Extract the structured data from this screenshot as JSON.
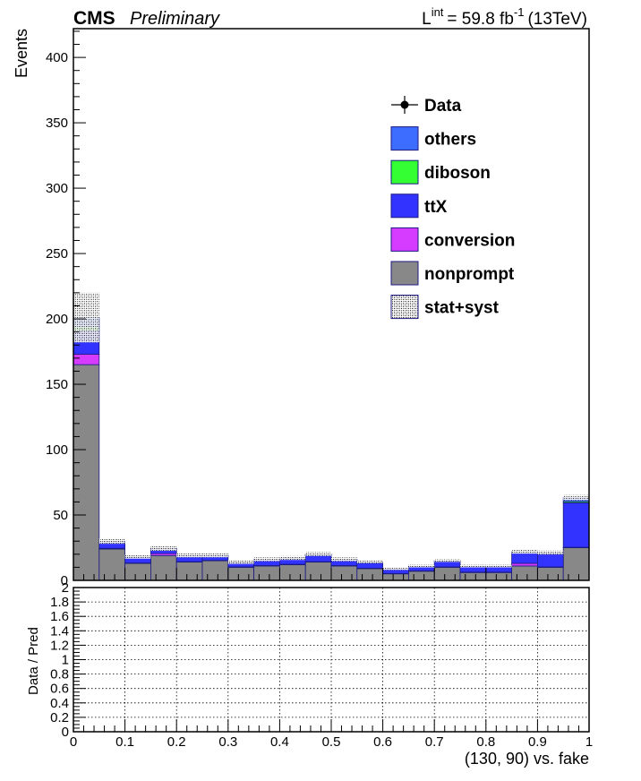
{
  "header": {
    "experiment": "CMS",
    "status": "Preliminary",
    "lumi_prefix": "L",
    "lumi_superscript": "int",
    "lumi_value": "= 59.8 fb",
    "lumi_unit_exp": "-1",
    "lumi_energy": "(13TeV)"
  },
  "colors": {
    "others": "#3d6dff",
    "diboson": "#33ff33",
    "ttX": "#3333ff",
    "conversion": "#d63cff",
    "nonprompt": "#888888",
    "frame": "#000000",
    "outline": "#1a1a80",
    "grid": "#000000"
  },
  "chart_data": [
    {
      "type": "bar",
      "stacked": true,
      "title": "",
      "xlabel": "",
      "ylabel": "Events",
      "xlim": [
        0,
        1
      ],
      "ylim": [
        0,
        422
      ],
      "y_ticks": [
        0,
        50,
        100,
        150,
        200,
        250,
        300,
        350,
        400
      ],
      "bin_edges": [
        0,
        0.05,
        0.1,
        0.15,
        0.2,
        0.25,
        0.3,
        0.35,
        0.4,
        0.45,
        0.5,
        0.55,
        0.6,
        0.65,
        0.7,
        0.75,
        0.8,
        0.85,
        0.9,
        0.95,
        1.0
      ],
      "series": [
        {
          "name": "nonprompt",
          "values": [
            165,
            24,
            13,
            19,
            14,
            15,
            10,
            11,
            12,
            14,
            11,
            9,
            5,
            7,
            10,
            6,
            6,
            11,
            10,
            25
          ]
        },
        {
          "name": "conversion",
          "values": [
            8,
            0.5,
            0.3,
            1.5,
            0.3,
            0.3,
            0.3,
            0.3,
            0.3,
            0.3,
            0.3,
            0.3,
            0.3,
            0.3,
            0.3,
            0.3,
            0.3,
            2,
            0.3,
            0.3
          ]
        },
        {
          "name": "ttX",
          "values": [
            18,
            4,
            4,
            3,
            4,
            3,
            3,
            4,
            4,
            5,
            4,
            4,
            3,
            3,
            4,
            4,
            4,
            8,
            10,
            34
          ]
        },
        {
          "name": "diboson",
          "values": [
            3,
            0.5,
            0.3,
            0.3,
            0.3,
            0.3,
            0.3,
            0.3,
            0.3,
            0.3,
            0.3,
            0.3,
            0.2,
            0.2,
            0.3,
            0.2,
            0.2,
            0.3,
            0.3,
            1
          ]
        },
        {
          "name": "others",
          "values": [
            7,
            1,
            0.5,
            0.8,
            0.5,
            0.5,
            0.5,
            0.5,
            0.5,
            0.5,
            0.5,
            0.5,
            0.4,
            0.4,
            0.5,
            0.4,
            0.4,
            0.6,
            0.7,
            3
          ]
        }
      ],
      "uncertainty": {
        "name": "stat+syst",
        "values": [
          38,
          4,
          3,
          4,
          3,
          3,
          3,
          3,
          3,
          3,
          3,
          2,
          2,
          2,
          2,
          2,
          2,
          3,
          3,
          4
        ]
      },
      "legend": {
        "placement": "upper-right",
        "entries": [
          {
            "label": "Data",
            "style": "marker"
          },
          {
            "label": "others",
            "style": "fill",
            "series": "others"
          },
          {
            "label": "diboson",
            "style": "fill",
            "series": "diboson"
          },
          {
            "label": "ttX",
            "style": "fill",
            "series": "ttX"
          },
          {
            "label": "conversion",
            "style": "fill",
            "series": "conversion"
          },
          {
            "label": "nonprompt",
            "style": "fill",
            "series": "nonprompt"
          },
          {
            "label": "stat+syst",
            "style": "hatch"
          }
        ]
      }
    },
    {
      "type": "scatter",
      "title": "",
      "xlabel": "(130, 90) vs. fake",
      "ylabel": "Data / Pred",
      "xlim": [
        0,
        1
      ],
      "ylim": [
        0,
        2
      ],
      "x_ticks": [
        0,
        0.1,
        0.2,
        0.3,
        0.4,
        0.5,
        0.6,
        0.7,
        0.8,
        0.9,
        1
      ],
      "x_tick_labels": [
        "0",
        "0.1",
        "0.2",
        "0.3",
        "0.4",
        "0.5",
        "0.6",
        "0.7",
        "0.8",
        "0.9",
        "1"
      ],
      "y_ticks": [
        0,
        0.2,
        0.4,
        0.6,
        0.8,
        1,
        1.2,
        1.4,
        1.6,
        1.8,
        2
      ],
      "y_tick_labels": [
        "0",
        "0.2",
        "0.4",
        "0.6",
        "0.8",
        "1",
        "1.2",
        "1.4",
        "1.6",
        "1.8",
        "2"
      ],
      "grid": true,
      "series": []
    }
  ]
}
